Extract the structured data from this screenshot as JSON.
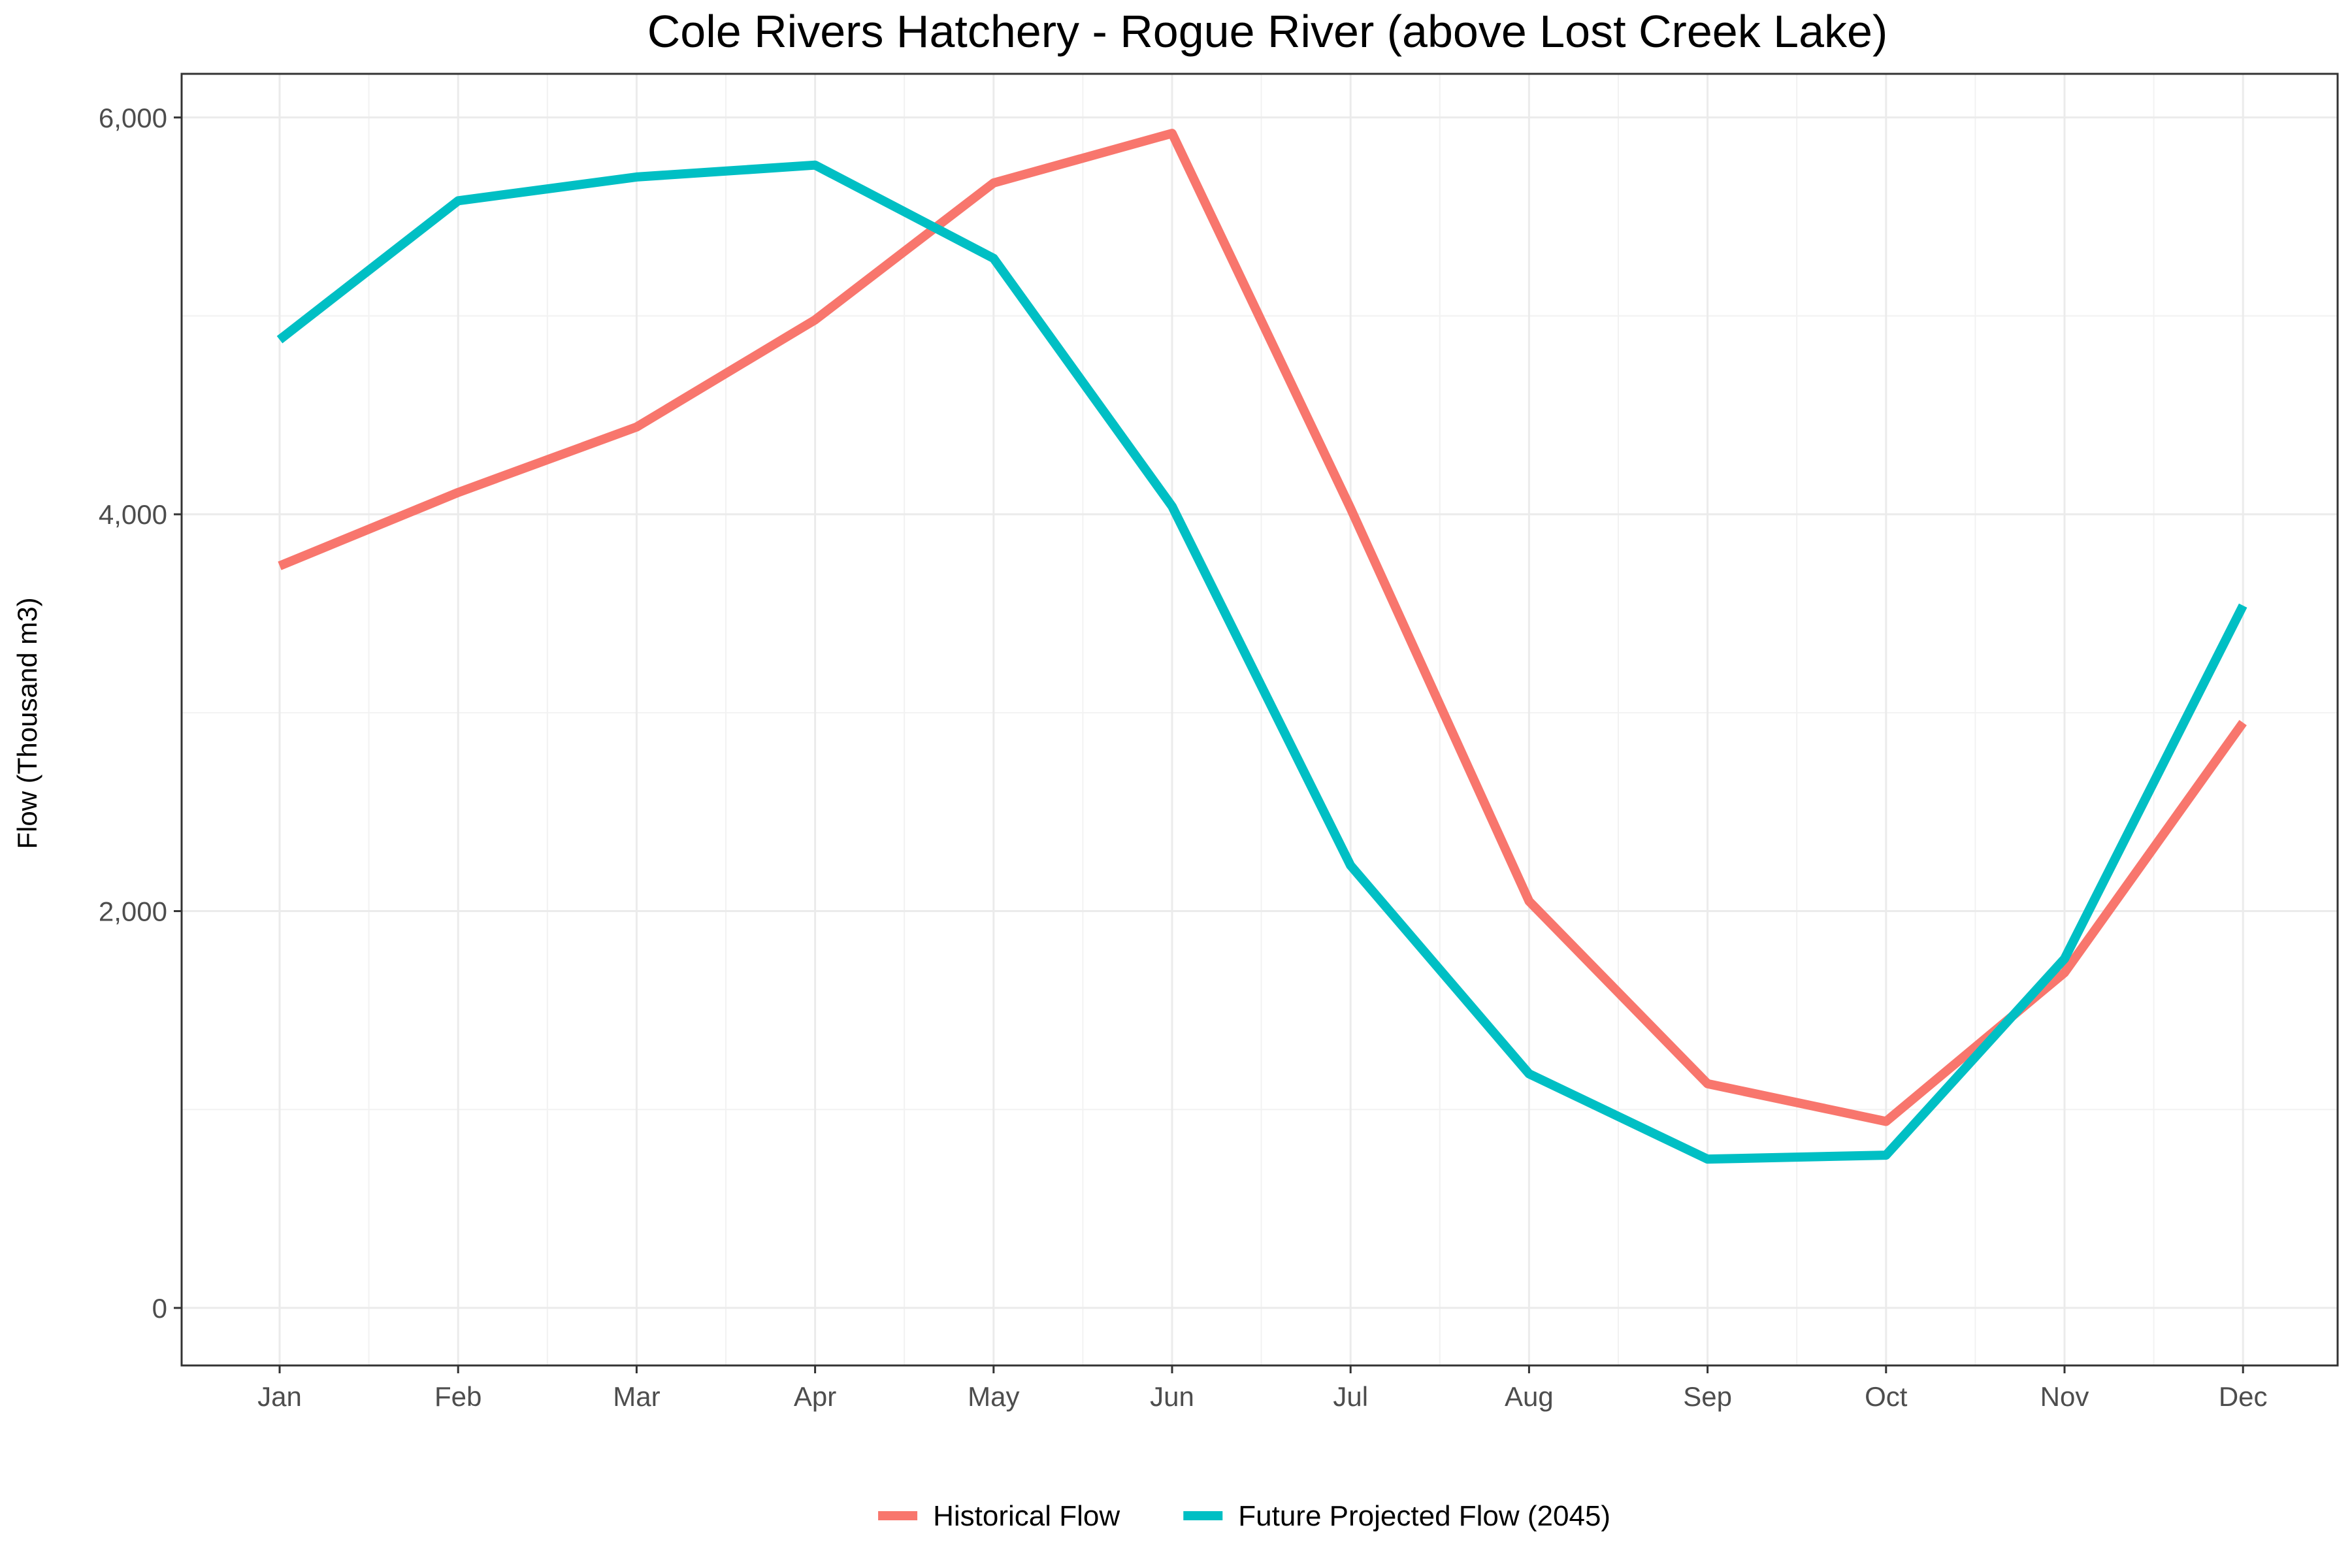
{
  "chart_data": {
    "type": "line",
    "title": "Cole Rivers Hatchery - Rogue River (above Lost Creek Lake)",
    "xlabel": "",
    "ylabel": "Flow (Thousand m3)",
    "categories": [
      "Jan",
      "Feb",
      "Mar",
      "Apr",
      "May",
      "Jun",
      "Jul",
      "Aug",
      "Sep",
      "Oct",
      "Nov",
      "Dec"
    ],
    "ylim": [
      -290,
      6220
    ],
    "yticks": [
      0,
      2000,
      4000,
      6000
    ],
    "ytick_labels": [
      "0",
      "2,000",
      "4,000",
      "6,000"
    ],
    "y_minor_ticks": [
      1000,
      3000,
      5000
    ],
    "grid": true,
    "legend_position": "bottom",
    "series": [
      {
        "name": "Historical Flow",
        "color": "#F8766D",
        "values": [
          3740,
          4110,
          4440,
          4980,
          5670,
          5920,
          4030,
          2050,
          1130,
          940,
          1690,
          2950
        ]
      },
      {
        "name": "Future Projected Flow (2045)",
        "color": "#00BFC4",
        "values": [
          4880,
          5580,
          5700,
          5760,
          5290,
          4040,
          2230,
          1180,
          750,
          770,
          1760,
          3540
        ]
      }
    ]
  }
}
